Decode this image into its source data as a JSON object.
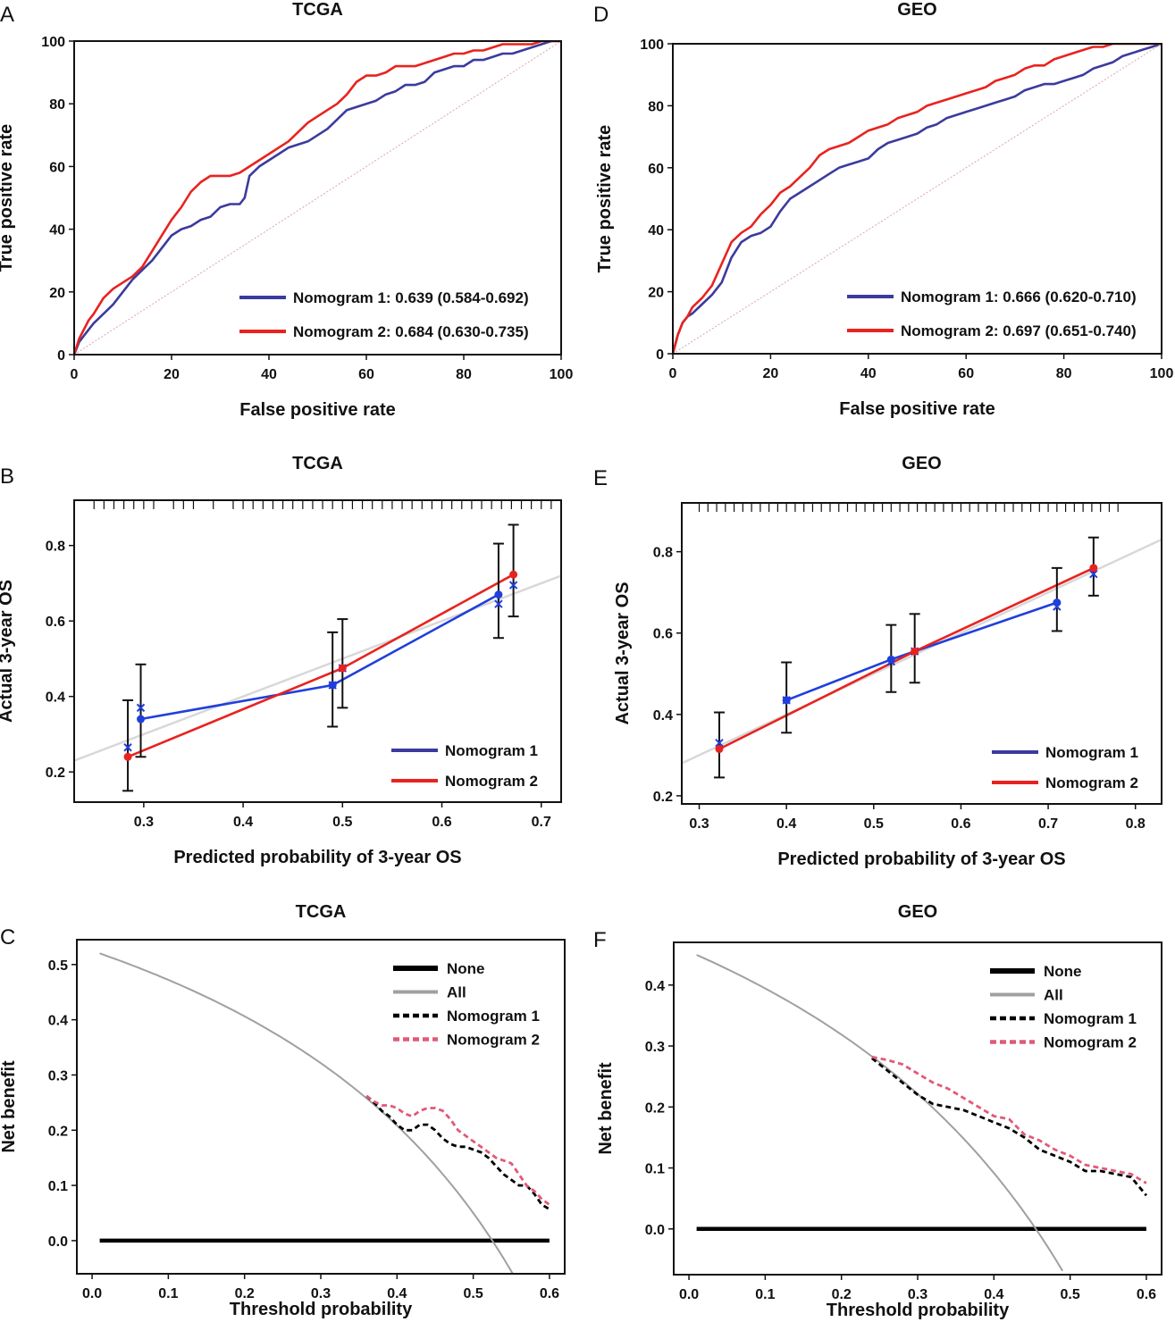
{
  "chart_data": [
    {
      "id": "A",
      "type": "line",
      "panel_label": "A",
      "title": "TCGA",
      "xlabel": "False positive rate",
      "ylabel": "True positive rate",
      "xlim": [
        0,
        100
      ],
      "ylim": [
        0,
        100
      ],
      "xticks": [
        "0",
        "20",
        "40",
        "60",
        "80",
        "100"
      ],
      "yticks": [
        "0",
        "20",
        "40",
        "60",
        "80",
        "100"
      ],
      "legend_position": "bottom-right",
      "series": [
        {
          "name": "Nomogram 1: 0.639 (0.584-0.692)",
          "color": "#3b3b9e",
          "x": [
            0,
            1,
            2,
            3,
            4,
            6,
            8,
            10,
            12,
            14,
            16,
            18,
            20,
            22,
            24,
            26,
            28,
            30,
            32,
            34,
            35,
            36,
            38,
            40,
            42,
            44,
            46,
            48,
            50,
            52,
            54,
            56,
            58,
            60,
            62,
            64,
            66,
            68,
            70,
            72,
            74,
            76,
            78,
            80,
            82,
            84,
            86,
            88,
            90,
            92,
            94,
            96,
            98,
            100
          ],
          "y": [
            0,
            4,
            6,
            8,
            10,
            13,
            16,
            20,
            24,
            27,
            30,
            34,
            38,
            40,
            41,
            43,
            44,
            47,
            48,
            48,
            50,
            57,
            60,
            62,
            64,
            66,
            67,
            68,
            70,
            72,
            75,
            78,
            79,
            80,
            81,
            83,
            84,
            86,
            86,
            87,
            90,
            91,
            92,
            92,
            94,
            94,
            95,
            96,
            96,
            97,
            98,
            99,
            100,
            100
          ]
        },
        {
          "name": "Nomogram 2: 0.684 (0.630-0.735)",
          "color": "#e8231f",
          "x": [
            0,
            1,
            2,
            3,
            4,
            6,
            8,
            10,
            12,
            14,
            16,
            18,
            20,
            22,
            24,
            26,
            28,
            30,
            32,
            34,
            36,
            38,
            40,
            42,
            44,
            46,
            48,
            50,
            52,
            54,
            56,
            58,
            60,
            62,
            64,
            66,
            68,
            70,
            72,
            74,
            76,
            78,
            80,
            82,
            84,
            86,
            88,
            90,
            92,
            94,
            96,
            98,
            100
          ],
          "y": [
            0,
            5,
            8,
            11,
            13,
            18,
            21,
            23,
            25,
            28,
            33,
            38,
            43,
            47,
            52,
            55,
            57,
            57,
            57,
            58,
            60,
            62,
            64,
            66,
            68,
            71,
            74,
            76,
            78,
            80,
            83,
            87,
            89,
            89,
            90,
            92,
            92,
            92,
            93,
            94,
            95,
            96,
            96,
            97,
            97,
            98,
            99,
            99,
            99,
            99,
            100,
            100,
            100
          ]
        },
        {
          "name": "Reference",
          "color": "#d9a3b8",
          "x": [
            0,
            100
          ],
          "y": [
            0,
            100
          ]
        }
      ]
    },
    {
      "id": "D",
      "type": "line",
      "panel_label": "D",
      "title": "GEO",
      "xlabel": "False positive rate",
      "ylabel": "True positive rate",
      "xlim": [
        0,
        100
      ],
      "ylim": [
        0,
        100
      ],
      "xticks": [
        "0",
        "20",
        "40",
        "60",
        "80",
        "100"
      ],
      "yticks": [
        "0",
        "20",
        "40",
        "60",
        "80",
        "100"
      ],
      "legend_position": "bottom-right",
      "series": [
        {
          "name": "Nomogram 1: 0.666 (0.620-0.710)",
          "color": "#3b3b9e",
          "x": [
            0,
            1,
            2,
            3,
            4,
            6,
            8,
            10,
            12,
            14,
            16,
            18,
            20,
            22,
            24,
            26,
            28,
            30,
            32,
            34,
            36,
            38,
            40,
            42,
            44,
            46,
            48,
            50,
            52,
            54,
            56,
            58,
            60,
            62,
            64,
            66,
            68,
            70,
            72,
            74,
            76,
            78,
            80,
            82,
            84,
            86,
            88,
            90,
            92,
            94,
            96,
            98,
            100
          ],
          "y": [
            0,
            6,
            10,
            12,
            13,
            16,
            19,
            23,
            31,
            36,
            38,
            39,
            41,
            46,
            50,
            52,
            54,
            56,
            58,
            60,
            61,
            62,
            63,
            66,
            68,
            69,
            70,
            71,
            73,
            74,
            76,
            77,
            78,
            79,
            80,
            81,
            82,
            83,
            85,
            86,
            87,
            87,
            88,
            89,
            90,
            92,
            93,
            94,
            96,
            97,
            98,
            99,
            100
          ]
        },
        {
          "name": "Nomogram 2: 0.697 (0.651-0.740)",
          "color": "#e8231f",
          "x": [
            0,
            1,
            2,
            3,
            4,
            6,
            8,
            10,
            12,
            14,
            16,
            18,
            20,
            22,
            24,
            26,
            28,
            30,
            32,
            34,
            36,
            38,
            40,
            42,
            44,
            46,
            48,
            50,
            52,
            54,
            56,
            58,
            60,
            62,
            64,
            66,
            68,
            70,
            72,
            74,
            76,
            78,
            80,
            82,
            84,
            86,
            88,
            90,
            92,
            94,
            96,
            98,
            100
          ],
          "y": [
            0,
            6,
            10,
            12,
            15,
            18,
            22,
            29,
            36,
            39,
            41,
            45,
            48,
            52,
            54,
            57,
            60,
            64,
            66,
            67,
            68,
            70,
            72,
            73,
            74,
            76,
            77,
            78,
            80,
            81,
            82,
            83,
            84,
            85,
            86,
            88,
            89,
            90,
            92,
            93,
            93,
            95,
            96,
            97,
            98,
            99,
            99,
            100,
            100,
            100,
            100,
            100,
            100
          ]
        },
        {
          "name": "Reference",
          "color": "#d9a3b8",
          "x": [
            0,
            100
          ],
          "y": [
            0,
            100
          ]
        }
      ]
    },
    {
      "id": "B",
      "type": "line",
      "panel_label": "B",
      "title": "TCGA",
      "xlabel": "Predicted probability of 3-year OS",
      "ylabel": "Actual 3-year OS",
      "xlim": [
        0.23,
        0.72
      ],
      "ylim": [
        0.12,
        0.92
      ],
      "xticks": [
        "0.3",
        "0.4",
        "0.5",
        "0.6",
        "0.7"
      ],
      "yticks": [
        "0.2",
        "0.4",
        "0.6",
        "0.8"
      ],
      "legend_position": "bottom-right",
      "ideal_line": {
        "x": [
          0.23,
          0.72
        ],
        "y": [
          0.23,
          0.72
        ]
      },
      "rug": [
        0.25,
        0.26,
        0.27,
        0.28,
        0.29,
        0.3,
        0.31,
        0.33,
        0.34,
        0.35,
        0.37,
        0.39,
        0.4,
        0.41,
        0.42,
        0.43,
        0.44,
        0.45,
        0.46,
        0.47,
        0.48,
        0.49,
        0.5,
        0.51,
        0.52,
        0.53,
        0.54,
        0.55,
        0.56,
        0.57,
        0.58,
        0.59,
        0.6,
        0.61,
        0.62,
        0.63,
        0.64,
        0.65,
        0.66,
        0.67,
        0.68,
        0.69,
        0.7,
        0.71
      ],
      "series": [
        {
          "name": "Nomogram 1",
          "color": "#1f3fdc",
          "x": [
            0.297,
            0.49,
            0.657
          ],
          "y": [
            0.34,
            0.43,
            0.67
          ],
          "corrected_y": [
            0.37,
            0.43,
            0.645
          ],
          "ci_low": [
            0.24,
            0.32,
            0.555
          ],
          "ci_high": [
            0.485,
            0.57,
            0.805
          ]
        },
        {
          "name": "Nomogram 2",
          "color": "#e8231f",
          "x": [
            0.284,
            0.5,
            0.672
          ],
          "y": [
            0.24,
            0.475,
            0.723
          ],
          "corrected_y": [
            0.265,
            0.475,
            0.695
          ],
          "ci_low": [
            0.15,
            0.37,
            0.612
          ],
          "ci_high": [
            0.39,
            0.605,
            0.855
          ]
        }
      ]
    },
    {
      "id": "E",
      "type": "line",
      "panel_label": "E",
      "title": "GEO",
      "xlabel": "Predicted probability of 3-year OS",
      "ylabel": "Actual 3-year OS",
      "xlim": [
        0.28,
        0.83
      ],
      "ylim": [
        0.18,
        0.92
      ],
      "xticks": [
        "0.3",
        "0.4",
        "0.5",
        "0.6",
        "0.7",
        "0.8"
      ],
      "yticks": [
        "0.2",
        "0.4",
        "0.6",
        "0.8"
      ],
      "legend_position": "bottom-right",
      "ideal_line": {
        "x": [
          0.28,
          0.83
        ],
        "y": [
          0.28,
          0.83
        ]
      },
      "rug": [
        0.3,
        0.31,
        0.32,
        0.33,
        0.34,
        0.35,
        0.36,
        0.37,
        0.38,
        0.39,
        0.4,
        0.41,
        0.42,
        0.43,
        0.44,
        0.45,
        0.46,
        0.47,
        0.48,
        0.49,
        0.5,
        0.51,
        0.52,
        0.53,
        0.54,
        0.55,
        0.56,
        0.57,
        0.58,
        0.59,
        0.6,
        0.61,
        0.62,
        0.63,
        0.64,
        0.65,
        0.66,
        0.67,
        0.68,
        0.69,
        0.7,
        0.71,
        0.72,
        0.73,
        0.74,
        0.75,
        0.76,
        0.77,
        0.78
      ],
      "series": [
        {
          "name": "Nomogram 1",
          "color": "#1f3fdc",
          "x": [
            0.4,
            0.52,
            0.71
          ],
          "y": [
            0.435,
            0.535,
            0.675
          ],
          "corrected_y": [
            0.435,
            0.53,
            0.665
          ],
          "ci_low": [
            0.355,
            0.455,
            0.605
          ],
          "ci_high": [
            0.528,
            0.62,
            0.76
          ]
        },
        {
          "name": "Nomogram 2",
          "color": "#e8231f",
          "x": [
            0.323,
            0.547,
            0.752
          ],
          "y": [
            0.315,
            0.555,
            0.76
          ],
          "corrected_y": [
            0.33,
            0.555,
            0.745
          ],
          "ci_low": [
            0.245,
            0.478,
            0.692
          ],
          "ci_high": [
            0.405,
            0.647,
            0.835
          ]
        }
      ]
    },
    {
      "id": "C",
      "type": "line",
      "panel_label": "C",
      "title": "TCGA",
      "xlabel": "Threshold probability",
      "ylabel": "Net benefit",
      "xlim": [
        -0.02,
        0.62
      ],
      "ylim": [
        -0.06,
        0.545
      ],
      "xticks": [
        "0.0",
        "0.1",
        "0.2",
        "0.3",
        "0.4",
        "0.5",
        "0.6"
      ],
      "yticks": [
        "0.0",
        "0.1",
        "0.2",
        "0.3",
        "0.4",
        "0.5"
      ],
      "legend_position": "top-right",
      "prevalence": 0.525,
      "series": [
        {
          "name": "None",
          "color": "#000000",
          "style": "solid",
          "x": [
            0.01,
            0.6
          ],
          "y": [
            0,
            0
          ]
        },
        {
          "name": "All",
          "color": "#a0a0a0",
          "style": "solid",
          "formula": "treat_all",
          "x": [
            0.01,
            0.56
          ],
          "y": [
            0.52,
            -0.06
          ]
        },
        {
          "name": "Nomogram 1",
          "color": "#000000",
          "style": "dashed",
          "x": [
            0.36,
            0.37,
            0.38,
            0.39,
            0.4,
            0.41,
            0.42,
            0.43,
            0.44,
            0.45,
            0.46,
            0.47,
            0.48,
            0.49,
            0.5,
            0.51,
            0.52,
            0.53,
            0.54,
            0.55,
            0.56,
            0.57,
            0.58,
            0.59,
            0.6
          ],
          "y": [
            0.262,
            0.25,
            0.235,
            0.225,
            0.21,
            0.2,
            0.2,
            0.21,
            0.21,
            0.2,
            0.185,
            0.175,
            0.17,
            0.17,
            0.165,
            0.16,
            0.15,
            0.135,
            0.12,
            0.11,
            0.1,
            0.1,
            0.085,
            0.065,
            0.057
          ]
        },
        {
          "name": "Nomogram 2",
          "color": "#e05a78",
          "style": "dashed",
          "x": [
            0.36,
            0.37,
            0.38,
            0.39,
            0.4,
            0.41,
            0.42,
            0.43,
            0.44,
            0.45,
            0.46,
            0.47,
            0.48,
            0.49,
            0.5,
            0.51,
            0.52,
            0.53,
            0.54,
            0.55,
            0.56,
            0.57,
            0.58,
            0.59,
            0.6
          ],
          "y": [
            0.262,
            0.252,
            0.245,
            0.245,
            0.24,
            0.23,
            0.225,
            0.235,
            0.24,
            0.24,
            0.235,
            0.22,
            0.2,
            0.19,
            0.18,
            0.17,
            0.16,
            0.15,
            0.145,
            0.14,
            0.12,
            0.1,
            0.09,
            0.075,
            0.065
          ]
        }
      ]
    },
    {
      "id": "F",
      "type": "line",
      "panel_label": "F",
      "title": "GEO",
      "xlabel": "Threshold probability",
      "ylabel": "Net benefit",
      "xlim": [
        -0.02,
        0.62
      ],
      "ylim": [
        -0.075,
        0.47
      ],
      "xticks": [
        "0.0",
        "0.1",
        "0.2",
        "0.3",
        "0.4",
        "0.5",
        "0.6"
      ],
      "yticks": [
        "0.0",
        "0.1",
        "0.2",
        "0.3",
        "0.4"
      ],
      "legend_position": "top-right",
      "prevalence": 0.455,
      "series": [
        {
          "name": "None",
          "color": "#000000",
          "style": "solid",
          "x": [
            0.01,
            0.6
          ],
          "y": [
            0,
            0
          ]
        },
        {
          "name": "All",
          "color": "#a0a0a0",
          "style": "solid",
          "formula": "treat_all",
          "x": [
            0.01,
            0.49
          ],
          "y": [
            0.45,
            -0.07
          ]
        },
        {
          "name": "Nomogram 1",
          "color": "#000000",
          "style": "dashed",
          "x": [
            0.24,
            0.26,
            0.28,
            0.3,
            0.32,
            0.34,
            0.36,
            0.38,
            0.4,
            0.42,
            0.44,
            0.46,
            0.48,
            0.5,
            0.52,
            0.54,
            0.56,
            0.58,
            0.6
          ],
          "y": [
            0.28,
            0.26,
            0.24,
            0.22,
            0.205,
            0.2,
            0.195,
            0.185,
            0.175,
            0.165,
            0.15,
            0.13,
            0.12,
            0.11,
            0.095,
            0.095,
            0.09,
            0.085,
            0.055
          ]
        },
        {
          "name": "Nomogram 2",
          "color": "#e05a78",
          "style": "dashed",
          "x": [
            0.24,
            0.26,
            0.28,
            0.3,
            0.32,
            0.34,
            0.36,
            0.38,
            0.4,
            0.42,
            0.44,
            0.46,
            0.48,
            0.5,
            0.52,
            0.54,
            0.56,
            0.58,
            0.6
          ],
          "y": [
            0.282,
            0.277,
            0.27,
            0.255,
            0.24,
            0.23,
            0.215,
            0.2,
            0.185,
            0.18,
            0.155,
            0.145,
            0.13,
            0.12,
            0.105,
            0.1,
            0.095,
            0.09,
            0.075
          ]
        }
      ]
    }
  ]
}
